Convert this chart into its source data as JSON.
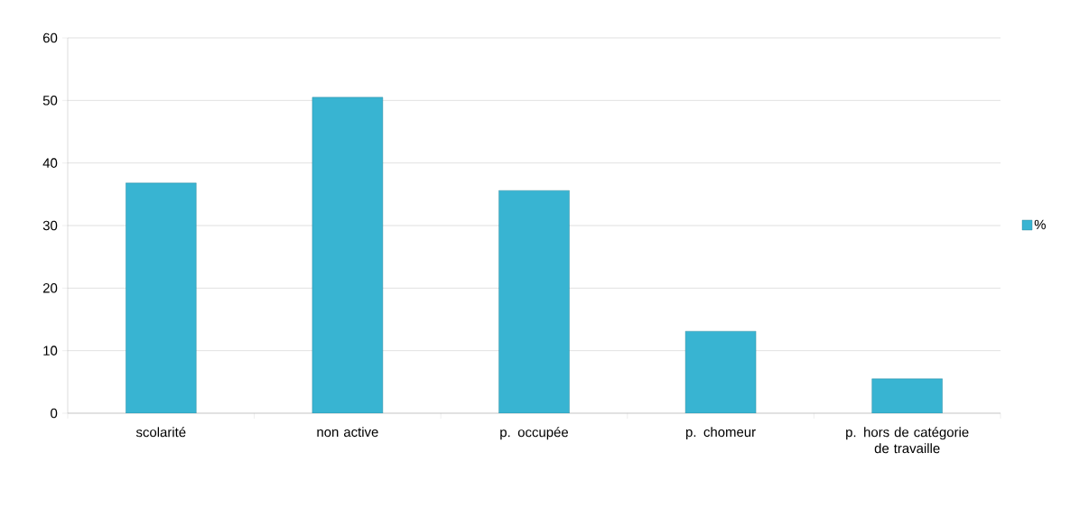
{
  "chart_data": {
    "type": "bar",
    "categories": [
      "scolarité",
      "non active",
      "p. occupée",
      "p. chomeur",
      "p. hors de catégorie de travaille"
    ],
    "series": [
      {
        "name": "%",
        "color": "#38b4d2",
        "values": [
          36.8,
          50.5,
          35.6,
          13.1,
          5.5
        ]
      }
    ],
    "ylim": [
      0,
      60
    ],
    "yticks": [
      0,
      10,
      20,
      30,
      40,
      50,
      60
    ],
    "grid": "y",
    "legend": "right"
  }
}
